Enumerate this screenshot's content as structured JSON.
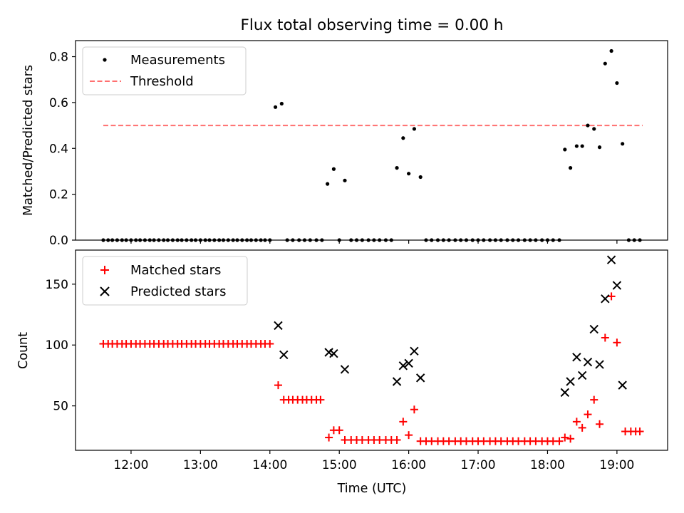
{
  "title": "Flux total observing time = 0.00 h",
  "xlabel": "Time (UTC)",
  "x_tick_labels": [
    "12:00",
    "13:00",
    "14:00",
    "15:00",
    "16:00",
    "17:00",
    "18:00",
    "19:00"
  ],
  "colors": {
    "threshold": "#ff7070",
    "matched": "#ff0000",
    "predicted": "#000000",
    "measurement": "#000000"
  },
  "chart_data": [
    {
      "type": "scatter",
      "panel": "top",
      "ylabel": "Matched/Predicted stars",
      "xlim": [
        11.2,
        19.73
      ],
      "ylim": [
        0,
        0.87
      ],
      "y_ticks": [
        0.0,
        0.2,
        0.4,
        0.6,
        0.8
      ],
      "y_tick_labels": [
        "0.0",
        "0.2",
        "0.4",
        "0.6",
        "0.8"
      ],
      "legend": [
        "Measurements",
        "Threshold"
      ],
      "legend_position": "upper-left",
      "threshold": {
        "name": "Threshold",
        "y": 0.5,
        "x_range": [
          11.6,
          19.37
        ]
      },
      "series": [
        {
          "name": "Measurements",
          "x": [
            11.6,
            11.67,
            11.73,
            11.8,
            11.87,
            11.93,
            12.0,
            12.07,
            12.13,
            12.2,
            12.27,
            12.33,
            12.4,
            12.47,
            12.53,
            12.6,
            12.67,
            12.73,
            12.8,
            12.87,
            12.93,
            13.0,
            13.07,
            13.13,
            13.2,
            13.27,
            13.33,
            13.4,
            13.47,
            13.53,
            13.6,
            13.67,
            13.73,
            13.8,
            13.87,
            13.93,
            14.0,
            14.08,
            14.17,
            14.25,
            14.33,
            14.42,
            14.5,
            14.58,
            14.67,
            14.75,
            14.83,
            14.92,
            15.0,
            15.08,
            15.17,
            15.25,
            15.33,
            15.42,
            15.5,
            15.58,
            15.67,
            15.75,
            15.83,
            15.92,
            16.0,
            16.08,
            16.17,
            16.25,
            16.33,
            16.42,
            16.5,
            16.58,
            16.67,
            16.75,
            16.83,
            16.92,
            17.0,
            17.08,
            17.17,
            17.25,
            17.33,
            17.42,
            17.5,
            17.58,
            17.67,
            17.75,
            17.83,
            17.92,
            18.0,
            18.08,
            18.17,
            18.25,
            18.33,
            18.42,
            18.5,
            18.58,
            18.67,
            18.75,
            18.83,
            18.92,
            19.0,
            19.08,
            19.17,
            19.25,
            19.33
          ],
          "y": [
            0,
            0,
            0,
            0,
            0,
            0,
            0,
            0,
            0,
            0,
            0,
            0,
            0,
            0,
            0,
            0,
            0,
            0,
            0,
            0,
            0,
            0,
            0,
            0,
            0,
            0,
            0,
            0,
            0,
            0,
            0,
            0,
            0,
            0,
            0,
            0,
            0,
            0.58,
            0.595,
            0,
            0,
            0,
            0,
            0,
            0,
            0,
            0.245,
            0.31,
            0,
            0.26,
            0,
            0,
            0,
            0,
            0,
            0,
            0,
            0,
            0.315,
            0.445,
            0.29,
            0.485,
            0.275,
            0,
            0,
            0,
            0,
            0,
            0,
            0,
            0,
            0,
            0,
            0,
            0,
            0,
            0,
            0,
            0,
            0,
            0,
            0,
            0,
            0,
            0,
            0,
            0,
            0.395,
            0.315,
            0.41,
            0.41,
            0.5,
            0.485,
            0.405,
            0.77,
            0.825,
            0.685,
            0.42,
            0,
            0,
            0
          ]
        }
      ]
    },
    {
      "type": "scatter",
      "panel": "bottom",
      "ylabel": "Count",
      "xlim": [
        11.2,
        19.73
      ],
      "ylim": [
        13.5,
        178
      ],
      "y_ticks": [
        50,
        100,
        150
      ],
      "y_tick_labels": [
        "50",
        "100",
        "150"
      ],
      "legend": [
        "Matched stars",
        "Predicted stars"
      ],
      "legend_position": "upper-left",
      "series": [
        {
          "name": "Matched stars",
          "x": [
            11.6,
            11.67,
            11.73,
            11.8,
            11.87,
            11.93,
            12.0,
            12.07,
            12.13,
            12.2,
            12.27,
            12.33,
            12.4,
            12.47,
            12.53,
            12.6,
            12.67,
            12.73,
            12.8,
            12.87,
            12.93,
            13.0,
            13.07,
            13.13,
            13.2,
            13.27,
            13.33,
            13.4,
            13.47,
            13.53,
            13.6,
            13.67,
            13.73,
            13.8,
            13.87,
            13.93,
            14.0,
            14.12,
            14.2,
            14.27,
            14.33,
            14.4,
            14.47,
            14.53,
            14.6,
            14.67,
            14.73,
            14.85,
            14.92,
            15.0,
            15.08,
            15.17,
            15.25,
            15.33,
            15.42,
            15.5,
            15.58,
            15.67,
            15.75,
            15.83,
            15.92,
            16.0,
            16.08,
            16.17,
            16.25,
            16.33,
            16.42,
            16.5,
            16.58,
            16.67,
            16.75,
            16.83,
            16.92,
            17.0,
            17.08,
            17.17,
            17.25,
            17.33,
            17.42,
            17.5,
            17.58,
            17.67,
            17.75,
            17.83,
            17.92,
            18.0,
            18.08,
            18.17,
            18.25,
            18.33,
            18.42,
            18.5,
            18.58,
            18.67,
            18.75,
            18.83,
            18.92,
            19.0,
            19.12,
            19.2,
            19.27,
            19.33
          ],
          "y": [
            101,
            101,
            101,
            101,
            101,
            101,
            101,
            101,
            101,
            101,
            101,
            101,
            101,
            101,
            101,
            101,
            101,
            101,
            101,
            101,
            101,
            101,
            101,
            101,
            101,
            101,
            101,
            101,
            101,
            101,
            101,
            101,
            101,
            101,
            101,
            101,
            101,
            67,
            55,
            55,
            55,
            55,
            55,
            55,
            55,
            55,
            55,
            24,
            30,
            30,
            22,
            22,
            22,
            22,
            22,
            22,
            22,
            22,
            22,
            22,
            37,
            26,
            47,
            21,
            21,
            21,
            21,
            21,
            21,
            21,
            21,
            21,
            21,
            21,
            21,
            21,
            21,
            21,
            21,
            21,
            21,
            21,
            21,
            21,
            21,
            21,
            21,
            21,
            24,
            23,
            37,
            32,
            43,
            55,
            35,
            106,
            140,
            102,
            29,
            29,
            29,
            29
          ]
        },
        {
          "name": "Predicted stars",
          "x": [
            14.12,
            14.2,
            14.85,
            14.92,
            15.08,
            15.83,
            15.92,
            16.0,
            16.08,
            16.17,
            18.25,
            18.33,
            18.42,
            18.5,
            18.58,
            18.67,
            18.75,
            18.83,
            18.92,
            19.0,
            19.08
          ],
          "y": [
            116,
            92,
            94,
            93,
            80,
            70,
            83,
            85,
            95,
            73,
            61,
            70,
            90,
            75,
            86,
            113,
            84,
            138,
            170,
            149,
            67
          ]
        }
      ]
    }
  ]
}
